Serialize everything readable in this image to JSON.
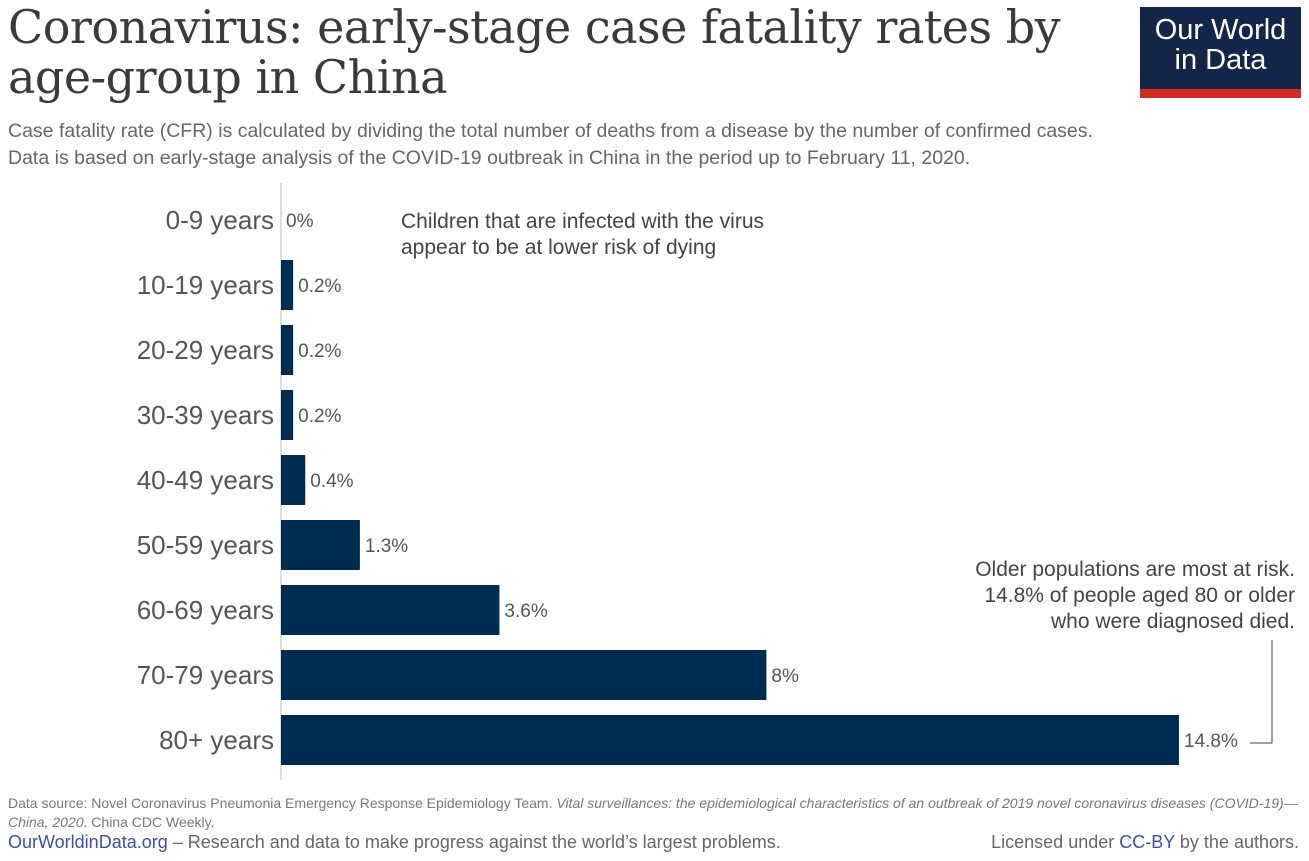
{
  "header": {
    "title": "Coronavirus: early-stage case fatality rates by age-group in China",
    "subtitle_line1": "Case fatality rate (CFR) is calculated by dividing the total number of deaths from a disease by the number of confirmed cases.",
    "subtitle_line2": "Data is based on early-stage analysis of the COVID-19 outbreak in China in the period up to February 11, 2020."
  },
  "logo": {
    "line1": "Our World",
    "line2": "in Data",
    "bg": "#132649",
    "accent": "#d42b21"
  },
  "chart_data": {
    "type": "bar",
    "orientation": "horizontal",
    "categories": [
      "0-9 years",
      "10-19 years",
      "20-29 years",
      "30-39 years",
      "40-49 years",
      "50-59 years",
      "60-69 years",
      "70-79 years",
      "80+ years"
    ],
    "values": [
      0,
      0.2,
      0.2,
      0.2,
      0.4,
      1.3,
      3.6,
      8,
      14.8
    ],
    "value_labels": [
      "0%",
      "0.2%",
      "0.2%",
      "0.2%",
      "0.4%",
      "1.3%",
      "3.6%",
      "8%",
      "14.8%"
    ],
    "bar_color": "#002b50",
    "annotations": [
      {
        "text": [
          "Children that are infected with the virus",
          "appear to be at lower risk of dying"
        ],
        "target": "0-9 years"
      },
      {
        "text": [
          "Older populations are most at risk.",
          "14.8% of people aged 80 or older",
          "who were diagnosed died."
        ],
        "target": "80+ years"
      }
    ]
  },
  "footer": {
    "source_prefix": "Data source: Novel Coronavirus Pneumonia Emergency Response Epidemiology Team. ",
    "source_italic1": "Vital surveillances: the epidemiological characteristics of an outbreak of 2019 novel coronavirus diseases (COVID-19)—China, 2020",
    "source_suffix": ". China CDC Weekly.",
    "site_link": "OurWorldinData.org",
    "tagline": " – Research and data to make progress against the world’s largest problems.",
    "license_prefix": "Licensed under ",
    "license_link": "CC-BY",
    "license_suffix": " by the authors."
  }
}
